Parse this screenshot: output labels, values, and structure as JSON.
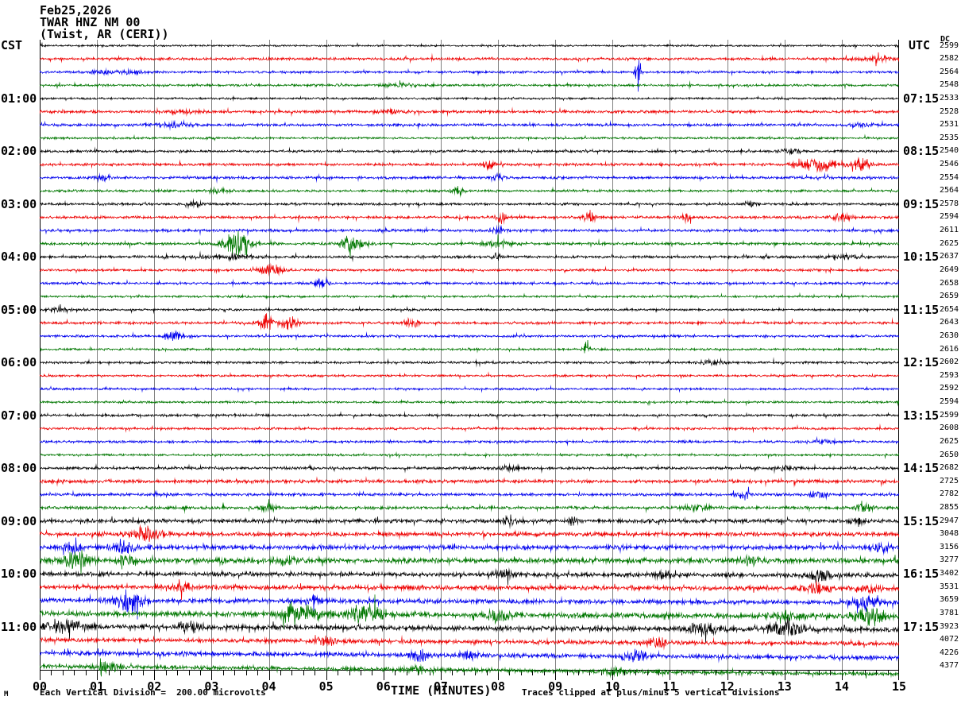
{
  "header": {
    "date": "Feb25,2026",
    "station": "TWAR HNZ NM 00",
    "location": "(Twist, AR (CERI))"
  },
  "axes": {
    "left_timezone": "CST",
    "right_timezone": "UTC",
    "dc_header": "DC",
    "x_title": "TIME (MINUTES)",
    "x_ticks": [
      "00",
      "01",
      "02",
      "03",
      "04",
      "05",
      "06",
      "07",
      "08",
      "09",
      "10",
      "11",
      "12",
      "13",
      "14",
      "15"
    ],
    "left_labels": [
      {
        "row": 4,
        "text": "01:00"
      },
      {
        "row": 8,
        "text": "02:00"
      },
      {
        "row": 12,
        "text": "03:00"
      },
      {
        "row": 16,
        "text": "04:00"
      },
      {
        "row": 20,
        "text": "05:00"
      },
      {
        "row": 24,
        "text": "06:00"
      },
      {
        "row": 28,
        "text": "07:00"
      },
      {
        "row": 32,
        "text": "08:00"
      },
      {
        "row": 36,
        "text": "09:00"
      },
      {
        "row": 40,
        "text": "10:00"
      },
      {
        "row": 44,
        "text": "11:00"
      }
    ],
    "right_labels": [
      {
        "row": 4,
        "text": "07:15"
      },
      {
        "row": 8,
        "text": "08:15"
      },
      {
        "row": 12,
        "text": "09:15"
      },
      {
        "row": 16,
        "text": "10:15"
      },
      {
        "row": 20,
        "text": "11:15"
      },
      {
        "row": 24,
        "text": "12:15"
      },
      {
        "row": 28,
        "text": "13:15"
      },
      {
        "row": 32,
        "text": "14:15"
      },
      {
        "row": 36,
        "text": "15:15"
      },
      {
        "row": 40,
        "text": "16:15"
      },
      {
        "row": 44,
        "text": "17:15"
      }
    ]
  },
  "footer": {
    "scale_note": "Each Vertical Division =  200.00 microvolts",
    "clip_note": "Traces clipped at plus/minus 5 vertical divisions",
    "watermark": "M"
  },
  "chart_data": {
    "type": "line",
    "title": "TWAR HNZ NM 00 (Twist, AR (CERI)) helicorder Feb25,2026",
    "xlabel": "TIME (MINUTES)",
    "x_range_minutes": [
      0,
      15
    ],
    "minutes_per_row": 15,
    "num_rows": 48,
    "first_row_start_cst": "00:00",
    "first_row_start_utc": "06:15",
    "grid": true,
    "colors_cycle": [
      "#000000",
      "#ee0000",
      "#0000ee",
      "#007700"
    ],
    "grid_color": "#808080",
    "dc_offsets": [
      2599,
      2582,
      2564,
      2548,
      2533,
      2528,
      2531,
      2535,
      2540,
      2546,
      2554,
      2564,
      2578,
      2594,
      2611,
      2625,
      2637,
      2649,
      2658,
      2659,
      2654,
      2643,
      2630,
      2616,
      2602,
      2593,
      2592,
      2594,
      2599,
      2608,
      2625,
      2650,
      2682,
      2725,
      2782,
      2855,
      2947,
      3048,
      3156,
      3277,
      3402,
      3531,
      3659,
      3781,
      3923,
      4072,
      4226,
      4377
    ],
    "rows": [
      {
        "amp": 0.7,
        "drift": 0,
        "events": []
      },
      {
        "amp": 1.0,
        "drift": 0,
        "events": [
          [
            14.6,
            0.4,
            1.5
          ]
        ]
      },
      {
        "amp": 0.9,
        "drift": 0,
        "events": [
          [
            1.3,
            0.5,
            1.0
          ],
          [
            10.45,
            0.05,
            13
          ]
        ]
      },
      {
        "amp": 0.9,
        "drift": 0,
        "events": [
          [
            6.3,
            0.3,
            1.0
          ]
        ]
      },
      {
        "amp": 0.8,
        "drift": 0,
        "events": []
      },
      {
        "amp": 1.0,
        "drift": 0,
        "events": [
          [
            2.5,
            0.3,
            1.2
          ],
          [
            6.1,
            0.2,
            1.0
          ]
        ]
      },
      {
        "amp": 1.0,
        "drift": 0,
        "events": [
          [
            2.3,
            0.3,
            1.5
          ],
          [
            14.3,
            0.2,
            1.5
          ]
        ]
      },
      {
        "amp": 0.8,
        "drift": 0,
        "events": []
      },
      {
        "amp": 0.9,
        "drift": 0,
        "events": [
          [
            13.1,
            0.2,
            1.2
          ]
        ]
      },
      {
        "amp": 1.0,
        "drift": 0,
        "events": [
          [
            7.85,
            0.08,
            4
          ],
          [
            13.6,
            0.35,
            4.5
          ],
          [
            14.35,
            0.15,
            3.5
          ]
        ]
      },
      {
        "amp": 1.0,
        "drift": 0,
        "events": [
          [
            1.1,
            0.15,
            2.5
          ],
          [
            8.0,
            0.1,
            2
          ]
        ]
      },
      {
        "amp": 0.9,
        "drift": 0,
        "events": [
          [
            3.1,
            0.2,
            1.5
          ],
          [
            7.3,
            0.1,
            3
          ]
        ]
      },
      {
        "amp": 0.9,
        "drift": 0,
        "events": [
          [
            2.7,
            0.15,
            2
          ],
          [
            12.4,
            0.1,
            2.5
          ]
        ]
      },
      {
        "amp": 1.0,
        "drift": 0,
        "events": [
          [
            8.05,
            0.1,
            4
          ],
          [
            9.6,
            0.12,
            4
          ],
          [
            11.3,
            0.1,
            2.5
          ],
          [
            14.0,
            0.15,
            3.5
          ]
        ]
      },
      {
        "amp": 1.0,
        "drift": 0,
        "events": [
          [
            8.0,
            0.12,
            2.5
          ]
        ]
      },
      {
        "amp": 1.0,
        "drift": 0,
        "events": [
          [
            3.45,
            0.22,
            10
          ],
          [
            5.45,
            0.18,
            7
          ],
          [
            8.0,
            0.3,
            2
          ]
        ]
      },
      {
        "amp": 1.0,
        "drift": 0,
        "events": [
          [
            3.3,
            0.6,
            1.2
          ],
          [
            8.0,
            0.1,
            2.5
          ],
          [
            14.0,
            0.3,
            1.2
          ]
        ]
      },
      {
        "amp": 0.9,
        "drift": 0,
        "events": [
          [
            4.05,
            0.2,
            4.5
          ]
        ]
      },
      {
        "amp": 0.9,
        "drift": 0,
        "events": [
          [
            4.9,
            0.12,
            4
          ]
        ]
      },
      {
        "amp": 0.8,
        "drift": 0,
        "events": []
      },
      {
        "amp": 0.8,
        "drift": 0,
        "events": [
          [
            0.3,
            0.2,
            1.5
          ]
        ]
      },
      {
        "amp": 1.0,
        "drift": 0,
        "events": [
          [
            3.95,
            0.12,
            6
          ],
          [
            4.35,
            0.15,
            5
          ],
          [
            6.5,
            0.15,
            3
          ]
        ]
      },
      {
        "amp": 0.9,
        "drift": 0,
        "events": [
          [
            2.35,
            0.15,
            3
          ]
        ]
      },
      {
        "amp": 0.8,
        "drift": 0,
        "events": [
          [
            9.55,
            0.05,
            8
          ]
        ]
      },
      {
        "amp": 0.9,
        "drift": 0,
        "events": [
          [
            11.7,
            0.2,
            1.5
          ]
        ]
      },
      {
        "amp": 0.8,
        "drift": 0,
        "events": []
      },
      {
        "amp": 0.8,
        "drift": 0,
        "events": []
      },
      {
        "amp": 0.8,
        "drift": 0,
        "events": []
      },
      {
        "amp": 0.9,
        "drift": 0,
        "events": []
      },
      {
        "amp": 0.9,
        "drift": 0,
        "events": []
      },
      {
        "amp": 0.9,
        "drift": 0,
        "events": [
          [
            13.7,
            0.2,
            1.5
          ]
        ]
      },
      {
        "amp": 0.8,
        "drift": 0,
        "events": []
      },
      {
        "amp": 1.0,
        "drift": 0,
        "events": [
          [
            8.2,
            0.15,
            2
          ],
          [
            13.0,
            0.2,
            1.5
          ]
        ]
      },
      {
        "amp": 1.3,
        "drift": 0,
        "events": []
      },
      {
        "amp": 1.1,
        "drift": 0,
        "events": [
          [
            12.3,
            0.15,
            2.5
          ],
          [
            13.6,
            0.15,
            2.5
          ]
        ]
      },
      {
        "amp": 1.1,
        "drift": 0,
        "events": [
          [
            4.0,
            0.12,
            3
          ],
          [
            11.5,
            0.3,
            1.5
          ],
          [
            14.4,
            0.15,
            3
          ]
        ]
      },
      {
        "amp": 1.4,
        "drift": 0,
        "events": [
          [
            8.2,
            0.12,
            3.5
          ],
          [
            9.3,
            0.1,
            2.5
          ],
          [
            14.3,
            0.15,
            2.5
          ]
        ]
      },
      {
        "amp": 1.5,
        "drift": 0,
        "events": [
          [
            1.85,
            0.2,
            5.5
          ]
        ]
      },
      {
        "amp": 1.7,
        "drift": 0,
        "events": [
          [
            0.55,
            0.15,
            3
          ],
          [
            1.45,
            0.2,
            4.5
          ],
          [
            14.7,
            0.15,
            4
          ]
        ]
      },
      {
        "amp": 1.9,
        "drift": 0,
        "events": [
          [
            0.65,
            0.25,
            7
          ],
          [
            1.5,
            0.15,
            4
          ],
          [
            4.3,
            0.2,
            2.5
          ],
          [
            12.4,
            0.15,
            3
          ]
        ]
      },
      {
        "amp": 1.6,
        "drift": 2,
        "events": [
          [
            8.1,
            0.15,
            4
          ],
          [
            10.9,
            0.15,
            3
          ],
          [
            13.6,
            0.2,
            3.5
          ]
        ]
      },
      {
        "amp": 1.7,
        "drift": 2,
        "events": [
          [
            2.5,
            0.15,
            2.5
          ],
          [
            13.6,
            0.2,
            4
          ],
          [
            14.5,
            0.15,
            3
          ]
        ]
      },
      {
        "amp": 1.7,
        "drift": 3,
        "events": [
          [
            1.55,
            0.25,
            8
          ],
          [
            4.8,
            0.15,
            3
          ],
          [
            14.4,
            0.2,
            5
          ]
        ]
      },
      {
        "amp": 1.9,
        "drift": 4,
        "events": [
          [
            4.55,
            0.4,
            6
          ],
          [
            5.7,
            0.3,
            7
          ],
          [
            8.0,
            0.2,
            4
          ],
          [
            13.0,
            0.25,
            3.5
          ],
          [
            14.5,
            0.3,
            5.5
          ]
        ]
      },
      {
        "amp": 1.8,
        "drift": 4,
        "events": [
          [
            0.45,
            0.3,
            6
          ],
          [
            2.6,
            0.2,
            3
          ],
          [
            11.6,
            0.25,
            4
          ],
          [
            13.0,
            0.3,
            4.5
          ]
        ]
      },
      {
        "amp": 1.5,
        "drift": 5,
        "events": [
          [
            5.0,
            0.2,
            2.5
          ],
          [
            10.8,
            0.25,
            3
          ]
        ]
      },
      {
        "amp": 1.6,
        "drift": 6,
        "events": [
          [
            6.6,
            0.15,
            4.5
          ],
          [
            7.5,
            0.15,
            3
          ],
          [
            10.4,
            0.2,
            3.5
          ]
        ]
      },
      {
        "amp": 1.5,
        "drift": 10,
        "events": [
          [
            1.2,
            0.2,
            3
          ],
          [
            6.6,
            0.2,
            2.5
          ],
          [
            10.0,
            0.2,
            2.5
          ]
        ]
      }
    ],
    "scale_note": "Each Vertical Division =  200.00 microvolts",
    "clip_note": "Traces clipped at plus/minus 5 vertical divisions"
  }
}
